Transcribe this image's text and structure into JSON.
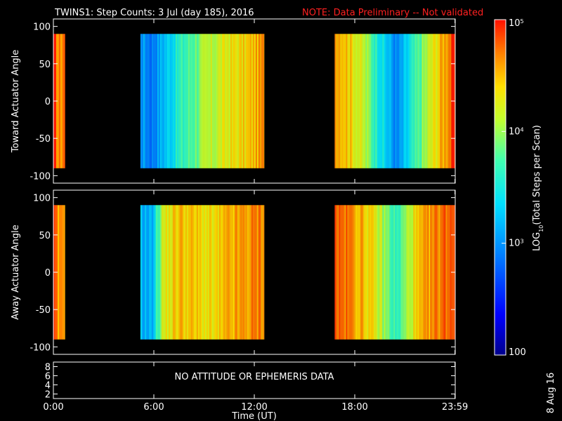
{
  "header": {
    "title": "TWINS1: Step Counts:  3 Jul (day 185), 2016",
    "note": "NOTE: Data Preliminary -- Not validated"
  },
  "footer": {
    "date_stamp": "8 Aug 16"
  },
  "colors": {
    "background": "#000000",
    "axes": "#ffffff",
    "note": "#ff2020"
  },
  "chart_data": [
    {
      "type": "heatmap",
      "panel": "top",
      "ylabel": "Toward Actuator Angle",
      "ylim": [
        -110,
        110
      ],
      "yticks": [
        "100",
        "50",
        "0",
        "-50",
        "-100"
      ],
      "xlim_hours": [
        0,
        24
      ],
      "angle_range": [
        -90,
        90
      ],
      "data_intervals_hours": [
        [
          0.0,
          0.7
        ],
        [
          5.2,
          12.6
        ],
        [
          16.8,
          24.0
        ]
      ],
      "profile_hours": [
        0.0,
        0.3,
        0.6,
        5.2,
        5.8,
        6.5,
        7.5,
        8.5,
        9.5,
        10.5,
        11.5,
        12.5,
        16.8,
        17.5,
        18.5,
        19.5,
        20.5,
        21.5,
        22.5,
        23.5,
        24.0
      ],
      "profile_log10_counts": [
        4.9,
        4.6,
        4.8,
        3.1,
        2.9,
        3.2,
        3.6,
        3.9,
        4.1,
        4.3,
        4.4,
        4.6,
        4.7,
        4.5,
        4.1,
        3.5,
        2.9,
        3.6,
        4.2,
        4.7,
        4.9
      ]
    },
    {
      "type": "heatmap",
      "panel": "bottom",
      "ylabel": "Away Actuator Angle",
      "ylim": [
        -110,
        110
      ],
      "yticks": [
        "100",
        "50",
        "0",
        "-50",
        "-100"
      ],
      "xlim_hours": [
        0,
        24
      ],
      "angle_range": [
        -90,
        90
      ],
      "data_intervals_hours": [
        [
          0.0,
          0.7
        ],
        [
          5.2,
          12.6
        ],
        [
          16.8,
          24.0
        ]
      ],
      "profile_hours": [
        0.0,
        0.3,
        0.6,
        5.2,
        5.8,
        6.5,
        7.5,
        8.5,
        9.5,
        10.5,
        11.5,
        12.5,
        16.8,
        17.5,
        18.5,
        19.5,
        20.5,
        21.5,
        22.5,
        23.5,
        24.0
      ],
      "profile_log10_counts": [
        4.8,
        4.5,
        4.7,
        3.2,
        3.1,
        4.2,
        4.5,
        4.4,
        4.3,
        4.5,
        4.6,
        4.7,
        4.8,
        4.7,
        4.5,
        4.1,
        3.6,
        4.3,
        4.6,
        4.8,
        4.9
      ]
    },
    {
      "type": "line",
      "panel": "attitude",
      "yticks": [
        "8",
        "6",
        "4",
        "2"
      ],
      "ylim": [
        1,
        9
      ],
      "message": "NO ATTITUDE OR EPHEMERIS DATA",
      "xlabel": "Time (UT)",
      "xticks": [
        "0:00",
        "6:00",
        "12:00",
        "18:00",
        "23:59"
      ],
      "xtick_hours": [
        0,
        6,
        12,
        18,
        23.983
      ]
    }
  ],
  "colorbar": {
    "label": "LOG10(Total Steps per Scan)",
    "label_main": "LOG",
    "label_sub": "10",
    "label_rest": "(Total Steps per Scan)",
    "range_log10": [
      2,
      5
    ],
    "tick_log10": [
      5,
      4,
      3,
      2
    ],
    "tick_labels": [
      {
        "base": "10",
        "exp": "5"
      },
      {
        "base": "10",
        "exp": "4"
      },
      {
        "base": "10",
        "exp": "3"
      },
      {
        "base": "100",
        "exp": ""
      }
    ]
  }
}
